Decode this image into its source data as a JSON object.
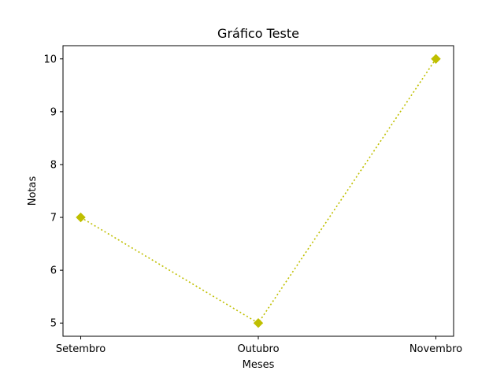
{
  "chart_data": {
    "type": "line",
    "title": "Gráfico Teste",
    "xlabel": "Meses",
    "ylabel": "Notas",
    "categories": [
      "Setembro",
      "Outubro",
      "Novembro"
    ],
    "series": [
      {
        "values": [
          7,
          5,
          10
        ],
        "color": "#bfbf00",
        "linestyle": "dotted",
        "marker": "diamond"
      }
    ],
    "yticks": [
      5,
      6,
      7,
      8,
      9,
      10
    ],
    "ylim": [
      4.75,
      10.25
    ],
    "grid": false,
    "legend": "none"
  }
}
